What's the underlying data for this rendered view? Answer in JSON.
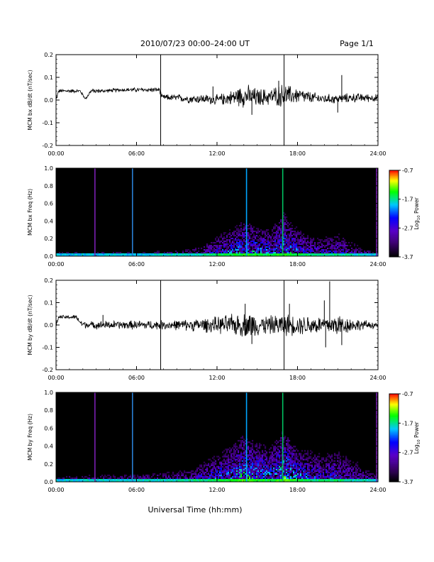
{
  "header": {
    "date_range": "2010/07/23  00:00–24:00 UT",
    "page": "Page 1/1"
  },
  "xlabel": "Universal Time (hh:mm)",
  "colorbar": {
    "ticks": [
      "-0.7",
      "-1.7",
      "-2.7",
      "-3.7"
    ],
    "label": "Log",
    "label_sub": "10",
    "label_rest": " Power",
    "range": [
      -3.7,
      -0.7
    ],
    "colors": [
      "#000000",
      "#3a006a",
      "#0000ff",
      "#00c8ff",
      "#00ff00",
      "#ffff00",
      "#ff8000",
      "#ff0000"
    ]
  },
  "chart_data": [
    {
      "type": "line",
      "ylabel": "MCM bx dB/dt (nT/sec)",
      "x_ticks": [
        "00:00",
        "06:00",
        "12:00",
        "18:00",
        "24:00"
      ],
      "y_ticks": [
        "0.2",
        "0.1",
        "0.0",
        "-0.1",
        "-0.2"
      ],
      "xlim": [
        0,
        24
      ],
      "ylim": [
        -0.2,
        0.2
      ],
      "markers_hours": [
        7.8,
        17.0
      ],
      "envelope": {
        "hours": [
          0,
          0.2,
          1.8,
          2.2,
          2.6,
          3.5,
          5.0,
          6.5,
          7.7,
          7.9,
          9.0,
          10.0,
          11.0,
          12.0,
          13.0,
          14.0,
          14.5,
          15.0,
          16.0,
          16.5,
          17.0,
          17.5,
          18.0,
          19.0,
          20.0,
          21.0,
          22.0,
          23.0,
          24.0
        ],
        "center": [
          0.0,
          0.04,
          0.04,
          0.005,
          0.04,
          0.04,
          0.045,
          0.045,
          0.045,
          0.012,
          0.01,
          0.005,
          0.005,
          0.0,
          0.01,
          0.02,
          0.015,
          0.01,
          0.015,
          0.02,
          0.02,
          0.02,
          0.02,
          0.01,
          0.005,
          0.005,
          0.01,
          0.01,
          0.01
        ],
        "amplitude": [
          0.01,
          0.008,
          0.008,
          0.005,
          0.01,
          0.008,
          0.008,
          0.01,
          0.01,
          0.012,
          0.015,
          0.018,
          0.02,
          0.022,
          0.03,
          0.05,
          0.045,
          0.04,
          0.035,
          0.045,
          0.05,
          0.04,
          0.035,
          0.025,
          0.02,
          0.02,
          0.02,
          0.018,
          0.015
        ]
      },
      "spikes": [
        {
          "hour": 21.3,
          "value": 0.11
        },
        {
          "hour": 21.0,
          "value": -0.055
        },
        {
          "hour": 14.6,
          "value": -0.065
        },
        {
          "hour": 16.6,
          "value": 0.085
        },
        {
          "hour": 11.7,
          "value": 0.06
        }
      ]
    },
    {
      "type": "heatmap",
      "ylabel": "MCM bx Freq (Hz)",
      "x_ticks": [
        "00:00",
        "06:00",
        "12:00",
        "18:00",
        "24:00"
      ],
      "y_ticks": [
        "1.0",
        "0.8",
        "0.6",
        "0.4",
        "0.2",
        "0.0"
      ],
      "xlim": [
        0,
        24
      ],
      "ylim": [
        0.0,
        1.0
      ],
      "activity": {
        "hours": [
          0,
          2,
          4,
          6,
          8,
          10,
          11,
          12,
          13,
          14,
          15,
          16,
          17,
          18,
          19,
          20,
          21,
          22,
          23,
          24
        ],
        "max_freq": [
          0.05,
          0.05,
          0.05,
          0.05,
          0.06,
          0.08,
          0.15,
          0.25,
          0.35,
          0.45,
          0.4,
          0.35,
          0.55,
          0.35,
          0.25,
          0.25,
          0.3,
          0.2,
          0.1,
          0.05
        ],
        "intensity": [
          0.25,
          0.3,
          0.3,
          0.3,
          0.35,
          0.4,
          0.45,
          0.55,
          0.6,
          0.7,
          0.65,
          0.6,
          0.75,
          0.6,
          0.5,
          0.45,
          0.5,
          0.4,
          0.35,
          0.3
        ]
      },
      "vertical_lines": [
        {
          "hour": 2.9,
          "color": "#7a1fb0"
        },
        {
          "hour": 5.7,
          "color": "#2a7fd4"
        },
        {
          "hour": 14.2,
          "color": "#00a6ff"
        },
        {
          "hour": 16.9,
          "color": "#00c060"
        },
        {
          "hour": 23.9,
          "color": "#7a1fb0"
        }
      ]
    },
    {
      "type": "line",
      "ylabel": "MCM by dB/dt (nT/sec)",
      "x_ticks": [
        "00:00",
        "06:00",
        "12:00",
        "18:00",
        "24:00"
      ],
      "y_ticks": [
        "0.2",
        "0.1",
        "0.0",
        "-0.1",
        "-0.2"
      ],
      "xlim": [
        0,
        24
      ],
      "ylim": [
        -0.2,
        0.2
      ],
      "markers_hours": [
        7.8,
        17.0
      ],
      "envelope": {
        "hours": [
          0,
          0.2,
          1.5,
          1.9,
          2.5,
          3.5,
          5.0,
          6.5,
          8.0,
          9.0,
          10.0,
          11.0,
          12.0,
          13.0,
          14.0,
          14.5,
          15.0,
          16.0,
          17.0,
          17.5,
          18.0,
          19.0,
          20.0,
          21.0,
          22.0,
          23.0,
          24.0
        ],
        "center": [
          0.0,
          0.035,
          0.035,
          0.005,
          0.0,
          0.0,
          0.0,
          0.0,
          0.0,
          0.0,
          0.0,
          0.0,
          0.0,
          0.0,
          0.0,
          0.0,
          0.0,
          0.0,
          0.0,
          0.0,
          0.0,
          0.0,
          0.0,
          0.0,
          0.0,
          0.0,
          0.0
        ],
        "amplitude": [
          0.01,
          0.008,
          0.01,
          0.015,
          0.015,
          0.018,
          0.018,
          0.02,
          0.02,
          0.022,
          0.025,
          0.03,
          0.035,
          0.045,
          0.05,
          0.06,
          0.045,
          0.04,
          0.05,
          0.045,
          0.04,
          0.045,
          0.035,
          0.05,
          0.03,
          0.02,
          0.015
        ]
      },
      "spikes": [
        {
          "hour": 20.4,
          "value": 0.195
        },
        {
          "hour": 20.0,
          "value": 0.11
        },
        {
          "hour": 17.4,
          "value": 0.095
        },
        {
          "hour": 14.1,
          "value": 0.095
        },
        {
          "hour": 14.6,
          "value": -0.085
        },
        {
          "hour": 20.1,
          "value": -0.1
        },
        {
          "hour": 21.3,
          "value": -0.09
        },
        {
          "hour": 3.5,
          "value": 0.045
        }
      ]
    },
    {
      "type": "heatmap",
      "ylabel": "MCM by Freq (Hz)",
      "x_ticks": [
        "00:00",
        "06:00",
        "12:00",
        "18:00",
        "24:00"
      ],
      "y_ticks": [
        "1.0",
        "0.8",
        "0.6",
        "0.4",
        "0.2",
        "0.0"
      ],
      "xlim": [
        0,
        24
      ],
      "ylim": [
        0.0,
        1.0
      ],
      "activity": {
        "hours": [
          0,
          2,
          4,
          6,
          8,
          10,
          11,
          12,
          13,
          14,
          15,
          16,
          17,
          18,
          19,
          20,
          21,
          22,
          23,
          24
        ],
        "max_freq": [
          0.08,
          0.08,
          0.08,
          0.1,
          0.12,
          0.15,
          0.25,
          0.35,
          0.45,
          0.6,
          0.5,
          0.45,
          0.65,
          0.45,
          0.4,
          0.35,
          0.4,
          0.3,
          0.2,
          0.1
        ],
        "intensity": [
          0.3,
          0.35,
          0.35,
          0.35,
          0.4,
          0.45,
          0.5,
          0.6,
          0.65,
          0.75,
          0.7,
          0.65,
          0.8,
          0.65,
          0.55,
          0.5,
          0.55,
          0.45,
          0.4,
          0.35
        ]
      },
      "vertical_lines": [
        {
          "hour": 2.9,
          "color": "#7a1fb0"
        },
        {
          "hour": 5.7,
          "color": "#2a7fd4"
        },
        {
          "hour": 14.2,
          "color": "#00a6ff"
        },
        {
          "hour": 16.9,
          "color": "#00c060"
        },
        {
          "hour": 23.9,
          "color": "#7a1fb0"
        }
      ]
    }
  ]
}
